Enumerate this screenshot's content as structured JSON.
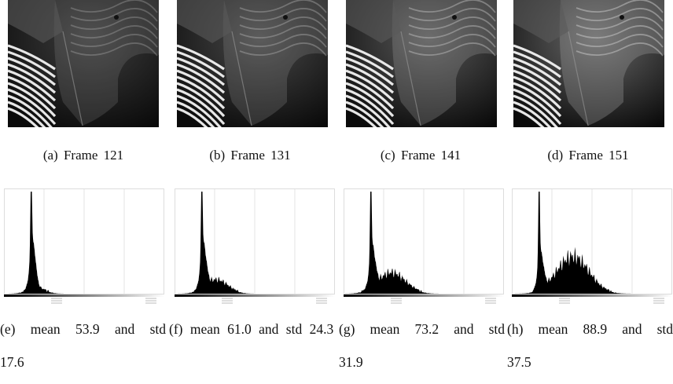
{
  "figure": {
    "panels": [
      {
        "caption": "(a) Frame 121"
      },
      {
        "caption": "(b) Frame 131"
      },
      {
        "caption": "(c) Frame 141"
      },
      {
        "caption": "(d) Frame 151"
      }
    ],
    "histograms": [
      {
        "caption": "(e) mean 53.9 and std 17.6"
      },
      {
        "caption": "(f) mean 61.0 and std 24.3"
      },
      {
        "caption": "(g) mean 73.2 and std 31.9"
      },
      {
        "caption": "(h) mean 88.9 and std 37.5"
      }
    ]
  }
}
